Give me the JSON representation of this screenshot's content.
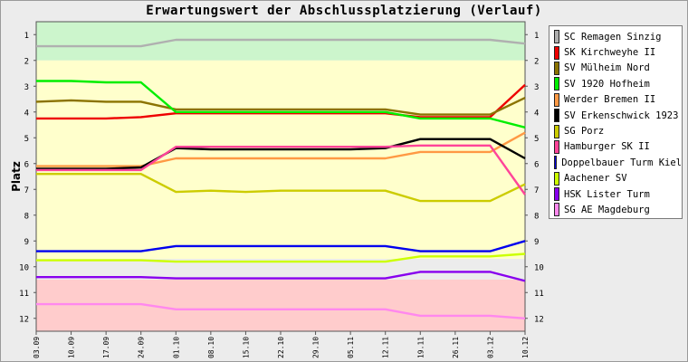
{
  "chart_data": {
    "type": "line",
    "title": "Erwartungswert der Abschlussplatzierung (Verlauf)",
    "xlabel": "",
    "ylabel": "Platz",
    "x": [
      "03.09",
      "10.09",
      "17.09",
      "24.09",
      "01.10",
      "08.10",
      "15.10",
      "22.10",
      "29.10",
      "05.11",
      "12.11",
      "19.11",
      "26.11",
      "03.12",
      "10.12"
    ],
    "ylim": [
      1,
      12
    ],
    "y_inverted": true,
    "yticks": [
      1,
      2,
      3,
      4,
      5,
      6,
      7,
      8,
      9,
      10,
      11,
      12
    ],
    "grid": false,
    "legend_position": "right",
    "bands": [
      {
        "from": 0.5,
        "to": 2.0,
        "color": "#ccf5cc"
      },
      {
        "from": 2.0,
        "to": 9.7,
        "color": "#ffffcc"
      },
      {
        "from": 9.7,
        "to": 10.5,
        "color": "#ececec"
      },
      {
        "from": 10.5,
        "to": 12.5,
        "color": "#ffcccc"
      }
    ],
    "series": [
      {
        "name": "SC Remagen Sinzig",
        "color": "#b0b0b0",
        "values": [
          1.45,
          1.45,
          1.45,
          1.45,
          1.2,
          1.2,
          1.2,
          1.2,
          1.2,
          1.2,
          1.2,
          1.2,
          1.2,
          1.2,
          1.35
        ]
      },
      {
        "name": "SK Kirchweyhe II",
        "color": "#ee0000",
        "values": [
          4.25,
          4.25,
          4.25,
          4.2,
          4.05,
          4.05,
          4.05,
          4.05,
          4.05,
          4.05,
          4.05,
          4.2,
          4.2,
          4.2,
          2.95
        ]
      },
      {
        "name": "SV Mülheim Nord",
        "color": "#8b7300",
        "values": [
          3.6,
          3.55,
          3.6,
          3.6,
          3.9,
          3.9,
          3.9,
          3.9,
          3.9,
          3.9,
          3.9,
          4.1,
          4.1,
          4.1,
          3.45
        ]
      },
      {
        "name": "SV 1920 Hofheim",
        "color": "#00ee00",
        "values": [
          2.8,
          2.8,
          2.85,
          2.85,
          4.0,
          4.0,
          4.0,
          4.0,
          4.0,
          4.0,
          4.0,
          4.25,
          4.25,
          4.25,
          4.6
        ]
      },
      {
        "name": "Werder Bremen II",
        "color": "#ff9944",
        "values": [
          6.1,
          6.1,
          6.1,
          6.1,
          5.8,
          5.8,
          5.8,
          5.8,
          5.8,
          5.8,
          5.8,
          5.55,
          5.55,
          5.55,
          4.8
        ]
      },
      {
        "name": "SV Erkenschwick 1923",
        "color": "#000000",
        "values": [
          6.2,
          6.2,
          6.2,
          6.15,
          5.4,
          5.45,
          5.45,
          5.45,
          5.45,
          5.45,
          5.4,
          5.05,
          5.05,
          5.05,
          5.8
        ]
      },
      {
        "name": "SG Porz",
        "color": "#cccc00",
        "values": [
          6.4,
          6.4,
          6.4,
          6.4,
          7.1,
          7.05,
          7.1,
          7.05,
          7.05,
          7.05,
          7.05,
          7.45,
          7.45,
          7.45,
          6.8
        ]
      },
      {
        "name": "Hamburger SK II",
        "color": "#ff4499",
        "values": [
          6.25,
          6.25,
          6.25,
          6.25,
          5.35,
          5.35,
          5.35,
          5.35,
          5.35,
          5.35,
          5.35,
          5.3,
          5.3,
          5.3,
          7.2
        ]
      },
      {
        "name": "Doppelbauer Turm Kiel",
        "color": "#0000ee",
        "values": [
          9.4,
          9.4,
          9.4,
          9.4,
          9.2,
          9.2,
          9.2,
          9.2,
          9.2,
          9.2,
          9.2,
          9.4,
          9.4,
          9.4,
          9.0
        ]
      },
      {
        "name": "Aachener SV",
        "color": "#ccff00",
        "values": [
          9.75,
          9.75,
          9.75,
          9.75,
          9.8,
          9.8,
          9.8,
          9.8,
          9.8,
          9.8,
          9.8,
          9.6,
          9.6,
          9.6,
          9.5
        ]
      },
      {
        "name": "HSK Lister Turm",
        "color": "#8800ee",
        "values": [
          10.4,
          10.4,
          10.4,
          10.4,
          10.45,
          10.45,
          10.45,
          10.45,
          10.45,
          10.45,
          10.45,
          10.2,
          10.2,
          10.2,
          10.55
        ]
      },
      {
        "name": "SG AE Magdeburg",
        "color": "#ff88ee",
        "values": [
          11.45,
          11.45,
          11.45,
          11.45,
          11.65,
          11.65,
          11.65,
          11.65,
          11.65,
          11.65,
          11.65,
          11.9,
          11.9,
          11.9,
          12.0
        ]
      }
    ]
  }
}
